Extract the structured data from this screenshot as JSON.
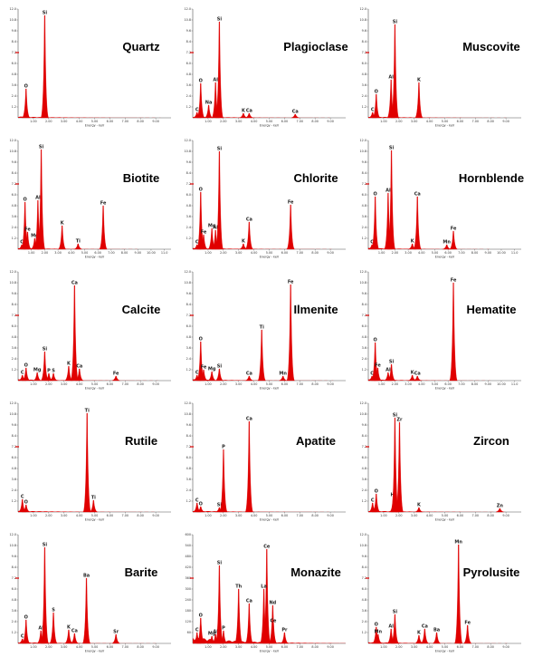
{
  "figure": {
    "accent_color": "#e00000",
    "axis_color": "#555555"
  },
  "chart_data": [
    {
      "type": "line",
      "mineral": "Quartz",
      "xlabel": "Energy - keV",
      "xticks": [
        "1.00",
        "2.00",
        "3.00",
        "4.00",
        "5.00",
        "6.00",
        "7.00",
        "8.00",
        "9.00"
      ],
      "yticks": [
        "12.0",
        "10.8",
        "9.6",
        "8.4",
        "7.2",
        "6.0",
        "4.8",
        "3.6",
        "2.4",
        "1.2"
      ],
      "xlim": [
        0,
        10
      ],
      "ylim": [
        0,
        12
      ],
      "peaks": [
        {
          "label": "O",
          "x": 0.52,
          "y": 3.2
        },
        {
          "label": "Si",
          "x": 1.74,
          "y": 11.3
        }
      ]
    },
    {
      "type": "line",
      "mineral": "Plagioclase",
      "xlabel": "Energy - keV",
      "xticks": [
        "1.00",
        "2.00",
        "3.00",
        "4.00",
        "5.00",
        "6.00",
        "7.00",
        "8.00",
        "9.00"
      ],
      "yticks": [
        "12.0",
        "10.8",
        "9.6",
        "8.4",
        "7.2",
        "6.0",
        "4.8",
        "3.6",
        "2.4",
        "1.2"
      ],
      "xlim": [
        0,
        10
      ],
      "ylim": [
        0,
        12
      ],
      "peaks": [
        {
          "label": "C",
          "x": 0.28,
          "y": 0.6
        },
        {
          "label": "O",
          "x": 0.52,
          "y": 3.8
        },
        {
          "label": "Na",
          "x": 1.04,
          "y": 1.4
        },
        {
          "label": "Al",
          "x": 1.49,
          "y": 3.9
        },
        {
          "label": "Si",
          "x": 1.74,
          "y": 10.6
        },
        {
          "label": "K",
          "x": 3.31,
          "y": 0.5
        },
        {
          "label": "Ca",
          "x": 3.69,
          "y": 0.5
        },
        {
          "label": "Ca",
          "x": 6.7,
          "y": 0.4
        }
      ]
    },
    {
      "type": "line",
      "mineral": "Muscovite",
      "xlabel": "Energy - keV",
      "xticks": [
        "1.00",
        "2.00",
        "3.00",
        "4.00",
        "5.00",
        "6.00",
        "7.00",
        "8.00",
        "9.00"
      ],
      "yticks": [
        "12.0",
        "10.8",
        "9.6",
        "8.4",
        "7.2",
        "6.0",
        "4.8",
        "3.6",
        "2.4",
        "1.2"
      ],
      "xlim": [
        0,
        10
      ],
      "ylim": [
        0,
        12
      ],
      "peaks": [
        {
          "label": "C",
          "x": 0.28,
          "y": 0.6
        },
        {
          "label": "O",
          "x": 0.52,
          "y": 2.6
        },
        {
          "label": "Al",
          "x": 1.49,
          "y": 4.2
        },
        {
          "label": "Si",
          "x": 1.74,
          "y": 10.3
        },
        {
          "label": "K",
          "x": 3.31,
          "y": 3.9
        }
      ]
    },
    {
      "type": "line",
      "mineral": "Biotite",
      "xlabel": "Energy - keV",
      "xticks": [
        "1.00",
        "2.00",
        "3.00",
        "4.00",
        "5.00",
        "6.00",
        "7.00",
        "8.00",
        "9.00",
        "10.00",
        "11.0"
      ],
      "yticks": [
        "12.0",
        "10.8",
        "9.6",
        "8.4",
        "7.2",
        "6.0",
        "4.8",
        "3.6",
        "2.4",
        "1.2"
      ],
      "xlim": [
        0,
        11.5
      ],
      "ylim": [
        0,
        12
      ],
      "peaks": [
        {
          "label": "C",
          "x": 0.28,
          "y": 0.5
        },
        {
          "label": "O",
          "x": 0.52,
          "y": 5.2
        },
        {
          "label": "Fe",
          "x": 0.71,
          "y": 1.9
        },
        {
          "label": "Mg",
          "x": 1.25,
          "y": 1.2
        },
        {
          "label": "Al",
          "x": 1.49,
          "y": 5.4
        },
        {
          "label": "Si",
          "x": 1.74,
          "y": 11.0
        },
        {
          "label": "K",
          "x": 3.31,
          "y": 2.6
        },
        {
          "label": "Ti",
          "x": 4.51,
          "y": 0.6
        },
        {
          "label": "Fe",
          "x": 6.4,
          "y": 4.8
        }
      ]
    },
    {
      "type": "line",
      "mineral": "Chlorite",
      "xlabel": "Energy - keV",
      "xticks": [
        "1.00",
        "2.00",
        "3.00",
        "4.00",
        "5.00",
        "6.00",
        "7.00",
        "8.00",
        "9.00"
      ],
      "yticks": [
        "12.0",
        "10.8",
        "9.6",
        "8.4",
        "7.2",
        "6.0",
        "4.8",
        "3.6",
        "2.4",
        "1.2"
      ],
      "xlim": [
        0,
        10
      ],
      "ylim": [
        0,
        12
      ],
      "peaks": [
        {
          "label": "C",
          "x": 0.28,
          "y": 0.5
        },
        {
          "label": "O",
          "x": 0.52,
          "y": 6.3
        },
        {
          "label": "Fe",
          "x": 0.71,
          "y": 1.6
        },
        {
          "label": "Mg",
          "x": 1.25,
          "y": 2.3
        },
        {
          "label": "Al",
          "x": 1.49,
          "y": 2.1
        },
        {
          "label": "Si",
          "x": 1.74,
          "y": 10.8
        },
        {
          "label": "K",
          "x": 3.31,
          "y": 0.6
        },
        {
          "label": "Ca",
          "x": 3.69,
          "y": 3.0
        },
        {
          "label": "Fe",
          "x": 6.4,
          "y": 4.9
        }
      ]
    },
    {
      "type": "line",
      "mineral": "Hornblende",
      "xlabel": "Energy - keV",
      "xticks": [
        "1.00",
        "2.00",
        "3.00",
        "4.00",
        "5.00",
        "6.00",
        "7.00",
        "8.00",
        "9.00",
        "10.00",
        "11.0"
      ],
      "yticks": [
        "12.0",
        "10.8",
        "9.6",
        "8.4",
        "7.2",
        "6.0",
        "4.8",
        "3.6",
        "2.4",
        "1.2"
      ],
      "xlim": [
        0,
        11.5
      ],
      "ylim": [
        0,
        12
      ],
      "peaks": [
        {
          "label": "C",
          "x": 0.28,
          "y": 0.5
        },
        {
          "label": "O",
          "x": 0.52,
          "y": 5.8
        },
        {
          "label": "Al",
          "x": 1.49,
          "y": 6.2
        },
        {
          "label": "Si",
          "x": 1.74,
          "y": 10.9
        },
        {
          "label": "Ca",
          "x": 3.69,
          "y": 5.8
        },
        {
          "label": "K",
          "x": 3.31,
          "y": 0.6
        },
        {
          "label": "Fe",
          "x": 6.4,
          "y": 2.0
        },
        {
          "label": "Mn",
          "x": 5.9,
          "y": 0.5
        }
      ]
    },
    {
      "type": "line",
      "mineral": "Calcite",
      "xlabel": "Energy - keV",
      "xticks": [
        "1.00",
        "2.00",
        "3.00",
        "4.00",
        "5.00",
        "6.00",
        "7.00",
        "8.00",
        "9.00"
      ],
      "yticks": [
        "12.0",
        "10.8",
        "9.6",
        "8.4",
        "7.2",
        "6.0",
        "4.8",
        "3.6",
        "2.4",
        "1.2"
      ],
      "xlim": [
        0,
        10
      ],
      "ylim": [
        0,
        12
      ],
      "peaks": [
        {
          "label": "C",
          "x": 0.28,
          "y": 0.6
        },
        {
          "label": "O",
          "x": 0.52,
          "y": 1.4
        },
        {
          "label": "Mg",
          "x": 1.25,
          "y": 0.9
        },
        {
          "label": "Si",
          "x": 1.74,
          "y": 3.2
        },
        {
          "label": "P",
          "x": 2.01,
          "y": 0.8
        },
        {
          "label": "S",
          "x": 2.31,
          "y": 0.8
        },
        {
          "label": "K",
          "x": 3.31,
          "y": 1.6
        },
        {
          "label": "Ca",
          "x": 3.69,
          "y": 10.5
        },
        {
          "label": "Ca",
          "x": 4.01,
          "y": 1.3
        },
        {
          "label": "Fe",
          "x": 6.4,
          "y": 0.5
        }
      ]
    },
    {
      "type": "line",
      "mineral": "Ilmenite",
      "xlabel": "Energy - keV",
      "xticks": [
        "1.00",
        "2.00",
        "3.00",
        "4.00",
        "5.00",
        "6.00",
        "7.00",
        "8.00",
        "9.00"
      ],
      "yticks": [
        "12.0",
        "10.8",
        "9.6",
        "8.4",
        "7.2",
        "6.0",
        "4.8",
        "3.6",
        "2.4",
        "1.2"
      ],
      "xlim": [
        0,
        10
      ],
      "ylim": [
        0,
        12
      ],
      "peaks": [
        {
          "label": "C",
          "x": 0.28,
          "y": 0.6
        },
        {
          "label": "O",
          "x": 0.52,
          "y": 4.3
        },
        {
          "label": "Fe",
          "x": 0.71,
          "y": 1.2
        },
        {
          "label": "Mg",
          "x": 1.25,
          "y": 1.0
        },
        {
          "label": "Si",
          "x": 1.74,
          "y": 1.3
        },
        {
          "label": "Ca",
          "x": 3.69,
          "y": 0.5
        },
        {
          "label": "Ti",
          "x": 4.51,
          "y": 5.6
        },
        {
          "label": "Mn",
          "x": 5.9,
          "y": 0.5
        },
        {
          "label": "Fe",
          "x": 6.4,
          "y": 10.6
        }
      ]
    },
    {
      "type": "line",
      "mineral": "Hematite",
      "xlabel": "Energy - keV",
      "xticks": [
        "1.00",
        "2.00",
        "3.00",
        "4.00",
        "5.00",
        "6.00",
        "7.00",
        "8.00",
        "9.00",
        "10.00",
        "11.0"
      ],
      "yticks": [
        "12.0",
        "10.8",
        "9.6",
        "8.4",
        "7.2",
        "6.0",
        "4.8",
        "3.6",
        "2.4",
        "1.2"
      ],
      "xlim": [
        0,
        11.5
      ],
      "ylim": [
        0,
        12
      ],
      "peaks": [
        {
          "label": "C",
          "x": 0.28,
          "y": 0.5
        },
        {
          "label": "O",
          "x": 0.52,
          "y": 4.2
        },
        {
          "label": "Fe",
          "x": 0.71,
          "y": 1.4
        },
        {
          "label": "Al",
          "x": 1.49,
          "y": 0.9
        },
        {
          "label": "Si",
          "x": 1.74,
          "y": 1.8
        },
        {
          "label": "K",
          "x": 3.31,
          "y": 0.6
        },
        {
          "label": "Ca",
          "x": 3.69,
          "y": 0.5
        },
        {
          "label": "Fe",
          "x": 6.4,
          "y": 10.8
        }
      ]
    },
    {
      "type": "line",
      "mineral": "Rutile",
      "xlabel": "Energy - keV",
      "xticks": [
        "1.00",
        "2.00",
        "3.00",
        "4.00",
        "5.00",
        "6.00",
        "7.00",
        "8.00",
        "9.00"
      ],
      "yticks": [
        "12.0",
        "10.8",
        "9.6",
        "8.4",
        "7.2",
        "6.0",
        "4.8",
        "3.6",
        "2.4",
        "1.2"
      ],
      "xlim": [
        0,
        10
      ],
      "ylim": [
        0,
        12
      ],
      "peaks": [
        {
          "label": "C",
          "x": 0.28,
          "y": 1.4
        },
        {
          "label": "O",
          "x": 0.52,
          "y": 0.8
        },
        {
          "label": "Ti",
          "x": 4.51,
          "y": 10.9
        },
        {
          "label": "Ti",
          "x": 4.93,
          "y": 1.3
        }
      ]
    },
    {
      "type": "line",
      "mineral": "Apatite",
      "xlabel": "Energy - keV",
      "xticks": [
        "1.00",
        "2.00",
        "3.00",
        "4.00",
        "5.00",
        "6.00",
        "7.00",
        "8.00",
        "9.00"
      ],
      "yticks": [
        "12.0",
        "10.8",
        "9.6",
        "8.4",
        "7.2",
        "6.0",
        "4.8",
        "3.6",
        "2.4",
        "1.2"
      ],
      "xlim": [
        0,
        10
      ],
      "ylim": [
        0,
        12
      ],
      "peaks": [
        {
          "label": "C",
          "x": 0.28,
          "y": 1.0
        },
        {
          "label": "O",
          "x": 0.52,
          "y": 0.6
        },
        {
          "label": "Si",
          "x": 1.74,
          "y": 0.5
        },
        {
          "label": "P",
          "x": 2.01,
          "y": 6.9
        },
        {
          "label": "Ca",
          "x": 3.69,
          "y": 10.0
        }
      ]
    },
    {
      "type": "line",
      "mineral": "Zircon",
      "xlabel": "Energy - keV",
      "xticks": [
        "1.00",
        "2.00",
        "3.00",
        "4.00",
        "5.00",
        "6.00",
        "7.00",
        "8.00",
        "9.00"
      ],
      "yticks": [
        "12.0",
        "10.8",
        "9.6",
        "8.4",
        "7.2",
        "6.0",
        "4.8",
        "3.6",
        "2.4",
        "1.2"
      ],
      "xlim": [
        0,
        10
      ],
      "ylim": [
        0,
        12
      ],
      "peaks": [
        {
          "label": "C",
          "x": 0.28,
          "y": 1.0
        },
        {
          "label": "O",
          "x": 0.52,
          "y": 2.0
        },
        {
          "label": "Hf",
          "x": 1.64,
          "y": 1.6
        },
        {
          "label": "Si",
          "x": 1.74,
          "y": 10.4
        },
        {
          "label": "Zr",
          "x": 2.04,
          "y": 9.9
        },
        {
          "label": "K",
          "x": 3.31,
          "y": 0.5
        },
        {
          "label": "Zn",
          "x": 8.6,
          "y": 0.4
        }
      ]
    },
    {
      "type": "line",
      "mineral": "Barite",
      "xlabel": "Energy - keV",
      "xticks": [
        "1.00",
        "2.00",
        "3.00",
        "4.00",
        "5.00",
        "6.00",
        "7.00",
        "8.00",
        "9.00"
      ],
      "yticks": [
        "12.0",
        "10.8",
        "9.6",
        "8.4",
        "7.2",
        "6.0",
        "4.8",
        "3.6",
        "2.4",
        "1.2"
      ],
      "xlim": [
        0,
        10
      ],
      "ylim": [
        0,
        12
      ],
      "peaks": [
        {
          "label": "C",
          "x": 0.28,
          "y": 0.5
        },
        {
          "label": "O",
          "x": 0.52,
          "y": 2.6
        },
        {
          "label": "Al",
          "x": 1.49,
          "y": 1.4
        },
        {
          "label": "Si",
          "x": 1.74,
          "y": 10.6
        },
        {
          "label": "S",
          "x": 2.31,
          "y": 3.4
        },
        {
          "label": "K",
          "x": 3.31,
          "y": 1.5
        },
        {
          "label": "Ca",
          "x": 3.69,
          "y": 1.1
        },
        {
          "label": "Ba",
          "x": 4.47,
          "y": 7.2
        },
        {
          "label": "Sr",
          "x": 6.4,
          "y": 1.0
        }
      ]
    },
    {
      "type": "line",
      "mineral": "Monazite",
      "xlabel": "Energy - keV",
      "xticks": [
        "1.00",
        "2.00",
        "3.00",
        "4.00",
        "5.00",
        "6.00",
        "7.00",
        "8.00",
        "9.00"
      ],
      "yticks": [
        "600",
        "540",
        "480",
        "420",
        "360",
        "300",
        "240",
        "180",
        "120",
        "60"
      ],
      "xlim": [
        0,
        10
      ],
      "ylim": [
        0,
        600
      ],
      "peaks": [
        {
          "label": "O",
          "x": 0.52,
          "y": 140
        },
        {
          "label": "C",
          "x": 0.28,
          "y": 60
        },
        {
          "label": "Mg",
          "x": 1.25,
          "y": 40
        },
        {
          "label": "Al",
          "x": 1.49,
          "y": 50
        },
        {
          "label": "Si",
          "x": 1.74,
          "y": 430
        },
        {
          "label": "P",
          "x": 2.01,
          "y": 70
        },
        {
          "label": "Th",
          "x": 3.0,
          "y": 300
        },
        {
          "label": "Ca",
          "x": 3.69,
          "y": 220
        },
        {
          "label": "Ce",
          "x": 4.84,
          "y": 520
        },
        {
          "label": "La",
          "x": 4.65,
          "y": 300
        },
        {
          "label": "Nd",
          "x": 5.23,
          "y": 210
        },
        {
          "label": "Ce",
          "x": 5.26,
          "y": 110
        },
        {
          "label": "Pr",
          "x": 6.0,
          "y": 60
        }
      ]
    },
    {
      "type": "line",
      "mineral": "Pyrolusite",
      "xlabel": "Energy - keV",
      "xticks": [
        "1.00",
        "2.00",
        "3.00",
        "4.00",
        "5.00",
        "6.00",
        "7.00",
        "8.00",
        "9.00"
      ],
      "yticks": [
        "12.0",
        "10.8",
        "9.6",
        "8.4",
        "7.2",
        "6.0",
        "4.8",
        "3.6",
        "2.4",
        "1.2"
      ],
      "xlim": [
        0,
        10
      ],
      "ylim": [
        0,
        12
      ],
      "peaks": [
        {
          "label": "O",
          "x": 0.52,
          "y": 1.8
        },
        {
          "label": "Mn",
          "x": 0.64,
          "y": 1.0
        },
        {
          "label": "Al",
          "x": 1.49,
          "y": 1.6
        },
        {
          "label": "Si",
          "x": 1.74,
          "y": 3.2
        },
        {
          "label": "K",
          "x": 3.31,
          "y": 0.9
        },
        {
          "label": "Ca",
          "x": 3.69,
          "y": 1.6
        },
        {
          "label": "Ba",
          "x": 4.47,
          "y": 1.2
        },
        {
          "label": "Mn",
          "x": 5.9,
          "y": 10.9
        },
        {
          "label": "Fe",
          "x": 6.49,
          "y": 2.0
        }
      ]
    }
  ]
}
